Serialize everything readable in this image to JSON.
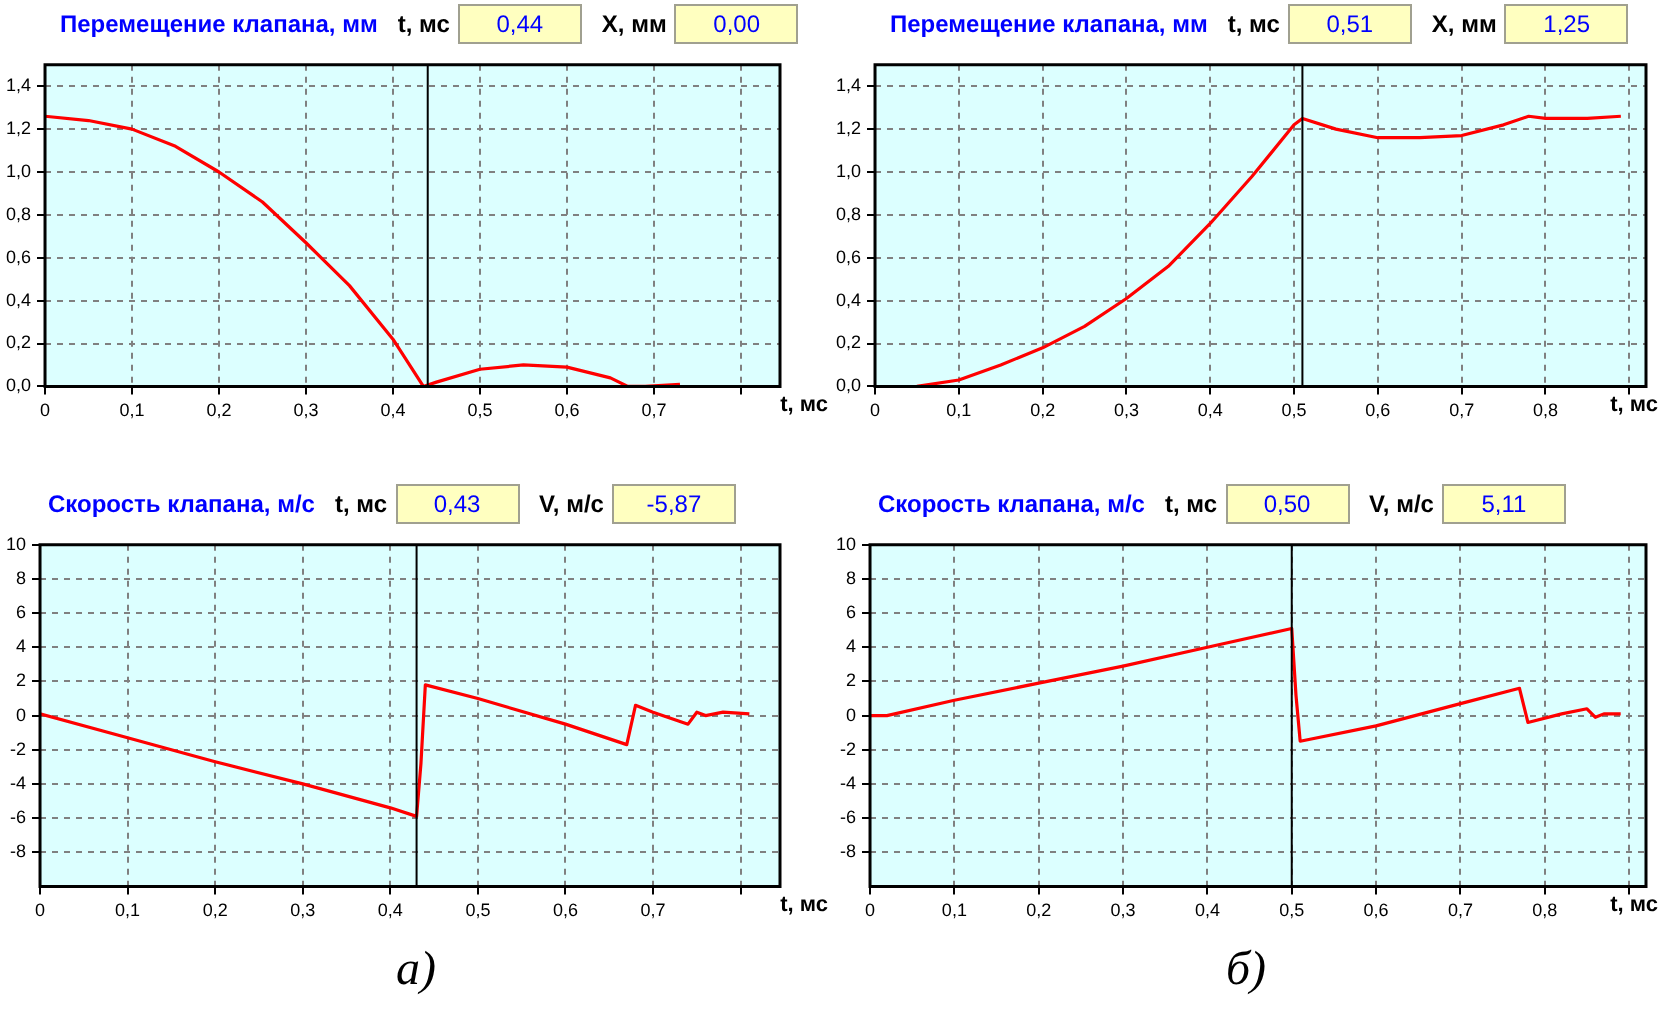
{
  "chart_data": [
    {
      "type": "line",
      "title": "Перемещение клапана, мм",
      "xlabel": "t, мс",
      "annotations": [
        "t, мс",
        "0,44",
        "X, мм",
        "0,00"
      ],
      "xlim": [
        0,
        0.845
      ],
      "xticks": [
        {
          "value": 0,
          "label": "0"
        },
        {
          "value": 0.1,
          "label": "0,1"
        },
        {
          "value": 0.2,
          "label": "0,2"
        },
        {
          "value": 0.3,
          "label": "0,3"
        },
        {
          "value": 0.4,
          "label": "0,4"
        },
        {
          "value": 0.5,
          "label": "0,5"
        },
        {
          "value": 0.6,
          "label": "0,6"
        },
        {
          "value": 0.7,
          "label": "0,7"
        },
        {
          "value": 0.8,
          "label": null
        }
      ],
      "ylim": [
        0,
        1.5
      ],
      "yticks": [
        {
          "value": 0,
          "label": "0,0"
        },
        {
          "value": 0.2,
          "label": "0,2"
        },
        {
          "value": 0.4,
          "label": "0,4"
        },
        {
          "value": 0.6,
          "label": "0,6"
        },
        {
          "value": 0.8,
          "label": "0,8"
        },
        {
          "value": 1,
          "label": "1,0"
        },
        {
          "value": 1.2,
          "label": "1,2"
        },
        {
          "value": 1.4,
          "label": "1,4"
        }
      ],
      "grid": true,
      "legend": false,
      "marker": "none",
      "line_style": "solid",
      "ref_lines": [
        {
          "axis": "x",
          "value": 0.44,
          "color": "#000000"
        }
      ],
      "series": [
        {
          "color": "#ff0000",
          "x": [
            0,
            0.05,
            0.1,
            0.15,
            0.2,
            0.25,
            0.3,
            0.35,
            0.4,
            0.435,
            0.45,
            0.5,
            0.55,
            0.6,
            0.65,
            0.67,
            0.69,
            0.73
          ],
          "values": [
            1.26,
            1.24,
            1.2,
            1.12,
            1.0,
            0.86,
            0.67,
            0.47,
            0.22,
            0.0,
            0.02,
            0.08,
            0.1,
            0.09,
            0.04,
            0.0,
            0.0,
            0.01
          ]
        }
      ]
    },
    {
      "type": "line",
      "title": "Перемещение клапана, мм",
      "xlabel": "t, мс",
      "annotations": [
        "t, мс",
        "0,51",
        "X, мм",
        "1,25"
      ],
      "xlim": [
        0,
        0.92
      ],
      "xticks": [
        {
          "value": 0,
          "label": "0"
        },
        {
          "value": 0.1,
          "label": "0,1"
        },
        {
          "value": 0.2,
          "label": "0,2"
        },
        {
          "value": 0.3,
          "label": "0,3"
        },
        {
          "value": 0.4,
          "label": "0,4"
        },
        {
          "value": 0.5,
          "label": "0,5"
        },
        {
          "value": 0.6,
          "label": "0,6"
        },
        {
          "value": 0.7,
          "label": "0,7"
        },
        {
          "value": 0.8,
          "label": "0,8"
        },
        {
          "value": 0.9,
          "label": null
        }
      ],
      "ylim": [
        0,
        1.5
      ],
      "yticks": [
        {
          "value": 0,
          "label": "0,0"
        },
        {
          "value": 0.2,
          "label": "0,2"
        },
        {
          "value": 0.4,
          "label": "0,4"
        },
        {
          "value": 0.6,
          "label": "0,6"
        },
        {
          "value": 0.8,
          "label": "0,8"
        },
        {
          "value": 1,
          "label": "1,0"
        },
        {
          "value": 1.2,
          "label": "1,2"
        },
        {
          "value": 1.4,
          "label": "1,4"
        }
      ],
      "grid": true,
      "legend": false,
      "marker": "none",
      "line_style": "solid",
      "ref_lines": [
        {
          "axis": "x",
          "value": 0.51,
          "color": "#000000"
        }
      ],
      "series": [
        {
          "color": "#ff0000",
          "x": [
            0.05,
            0.1,
            0.15,
            0.2,
            0.25,
            0.3,
            0.35,
            0.4,
            0.45,
            0.5,
            0.51,
            0.55,
            0.6,
            0.65,
            0.7,
            0.75,
            0.78,
            0.8,
            0.85,
            0.89
          ],
          "values": [
            0.0,
            0.03,
            0.1,
            0.18,
            0.28,
            0.41,
            0.56,
            0.76,
            0.98,
            1.22,
            1.25,
            1.2,
            1.16,
            1.16,
            1.17,
            1.22,
            1.26,
            1.25,
            1.25,
            1.26
          ]
        }
      ]
    },
    {
      "type": "line",
      "title": "Скорость клапана, м/с",
      "xlabel": "t, мс",
      "annotations": [
        "t, мс",
        "0,43",
        "V, м/с",
        "-5,87",
        "а)"
      ],
      "xlim": [
        0,
        0.845
      ],
      "xticks": [
        {
          "value": 0,
          "label": "0"
        },
        {
          "value": 0.1,
          "label": "0,1"
        },
        {
          "value": 0.2,
          "label": "0,2"
        },
        {
          "value": 0.3,
          "label": "0,3"
        },
        {
          "value": 0.4,
          "label": "0,4"
        },
        {
          "value": 0.5,
          "label": "0,5"
        },
        {
          "value": 0.6,
          "label": "0,6"
        },
        {
          "value": 0.7,
          "label": "0,7"
        },
        {
          "value": 0.8,
          "label": null
        }
      ],
      "ylim": [
        -10,
        10
      ],
      "yticks": [
        -8,
        -6,
        -4,
        -2,
        0,
        2,
        4,
        6,
        8,
        10
      ],
      "grid": true,
      "legend": false,
      "marker": "none",
      "line_style": "solid",
      "ref_lines": [
        {
          "axis": "x",
          "value": 0.43,
          "color": "#000000"
        }
      ],
      "series": [
        {
          "color": "#ff0000",
          "x": [
            0,
            0.1,
            0.2,
            0.3,
            0.4,
            0.43,
            0.435,
            0.44,
            0.5,
            0.6,
            0.67,
            0.68,
            0.7,
            0.74,
            0.75,
            0.76,
            0.78,
            0.81
          ],
          "values": [
            0.1,
            -1.3,
            -2.7,
            -4.0,
            -5.4,
            -5.9,
            -2.8,
            1.8,
            1.0,
            -0.5,
            -1.7,
            0.6,
            0.2,
            -0.5,
            0.2,
            0.0,
            0.2,
            0.1
          ]
        }
      ]
    },
    {
      "type": "line",
      "title": "Скорость клапана, м/с",
      "xlabel": "t, мс",
      "annotations": [
        "t, мс",
        "0,50",
        "V, м/с",
        "5,11",
        "б)"
      ],
      "xlim": [
        0,
        0.92
      ],
      "xticks": [
        {
          "value": 0,
          "label": "0"
        },
        {
          "value": 0.1,
          "label": "0,1"
        },
        {
          "value": 0.2,
          "label": "0,2"
        },
        {
          "value": 0.3,
          "label": "0,3"
        },
        {
          "value": 0.4,
          "label": "0,4"
        },
        {
          "value": 0.5,
          "label": "0,5"
        },
        {
          "value": 0.6,
          "label": "0,6"
        },
        {
          "value": 0.7,
          "label": "0,7"
        },
        {
          "value": 0.8,
          "label": "0,8"
        },
        {
          "value": 0.9,
          "label": null
        }
      ],
      "ylim": [
        -10,
        10
      ],
      "yticks": [
        -8,
        -6,
        -4,
        -2,
        0,
        2,
        4,
        6,
        8,
        10
      ],
      "grid": true,
      "legend": false,
      "marker": "none",
      "line_style": "solid",
      "ref_lines": [
        {
          "axis": "x",
          "value": 0.5,
          "color": "#000000"
        }
      ],
      "series": [
        {
          "color": "#ff0000",
          "x": [
            0,
            0.02,
            0.1,
            0.2,
            0.3,
            0.4,
            0.5,
            0.505,
            0.51,
            0.6,
            0.7,
            0.77,
            0.78,
            0.82,
            0.85,
            0.86,
            0.87,
            0.89
          ],
          "values": [
            0,
            0.0,
            0.9,
            1.9,
            2.9,
            4.0,
            5.1,
            1.2,
            -1.5,
            -0.6,
            0.7,
            1.6,
            -0.4,
            0.1,
            0.4,
            -0.1,
            0.1,
            0.1
          ]
        }
      ]
    }
  ]
}
